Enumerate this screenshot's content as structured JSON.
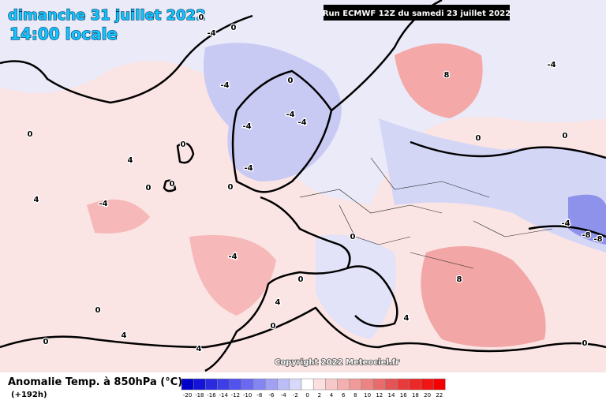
{
  "header": {
    "date": "dimanche 31 juillet 2022",
    "time": "14:00 locale",
    "run": "Run ECMWF 12Z du samedi 23 juillet 2022"
  },
  "copyright": "Copyright 2022 Meteociel.fr",
  "legend": {
    "title": "Anomalie Temp. à 850hPa (°C)",
    "lead": "(+192h)",
    "ticks": [
      -20,
      -18,
      -16,
      -14,
      -12,
      -10,
      -8,
      -6,
      -4,
      -2,
      0,
      2,
      4,
      6,
      8,
      10,
      12,
      14,
      16,
      18,
      20,
      22
    ],
    "colors": [
      "#0000c8",
      "#1414d8",
      "#2a2ae0",
      "#3e3ee6",
      "#5252ec",
      "#6a6af0",
      "#8484f2",
      "#a0a0f4",
      "#bcbcf6",
      "#d8d8fa",
      "#ffffff",
      "#fce0e0",
      "#f8c8c8",
      "#f4b0b0",
      "#f09a9a",
      "#ec8484",
      "#e86c6c",
      "#e45454",
      "#e83c3c",
      "#ec2828",
      "#f01414",
      "#f40000"
    ]
  },
  "contour_labels": [
    "0",
    "-4",
    "0",
    "-4",
    "0",
    "-4",
    "-4",
    "-4",
    "-4",
    "0",
    "0",
    "4",
    "0",
    "0",
    "0",
    "4",
    "-4",
    "8",
    "-4",
    "0",
    "0",
    "-4",
    "-8",
    "-8",
    "8",
    "-4",
    "4",
    "0",
    "0",
    "0",
    "0",
    "4",
    "0",
    "4",
    "4",
    "0"
  ]
}
